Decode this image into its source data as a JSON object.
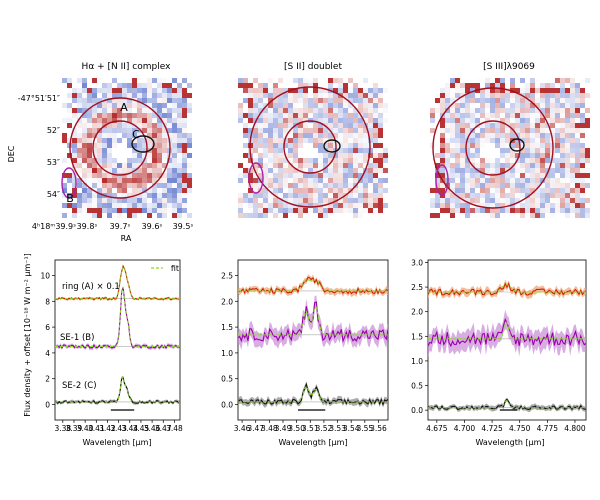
{
  "figure": {
    "maps": [
      {
        "title": "Hα + [N II] complex",
        "ylabel": "DEC",
        "xlabel": "RA",
        "yticks": [
          "-47°51′51″",
          "52″",
          "53″",
          "54″"
        ],
        "xticks": [
          "4ʰ18ᵐ39.9ˢ",
          "39.8ˢ",
          "39.7ˢ",
          "39.6ˢ",
          "39.5ˢ"
        ],
        "region_labels": [
          "A",
          "B",
          "C"
        ]
      },
      {
        "title": "[S II] doublet"
      },
      {
        "title": "[S III]λ9069"
      }
    ],
    "colors": {
      "ring": "#cc2200",
      "ring_fill": "#f0a070",
      "se1": "#9900aa",
      "se1_fill": "#c88ad6",
      "se2": "#111111",
      "se2_fill": "#888888",
      "fit": "#88dd22",
      "circle": "#a01020",
      "ellipseB": "#aa22aa",
      "ellipseC": "#111111"
    }
  },
  "chart_data": [
    {
      "type": "line",
      "ylabel": "Flux density + offset [10⁻¹⁸ W m⁻² μm⁻¹]",
      "xlabel": "Wavelength [μm]",
      "xlim": [
        3.373,
        3.485
      ],
      "ylim": [
        -1.2,
        11.2
      ],
      "xticks": [
        3.38,
        3.39,
        3.4,
        3.41,
        3.42,
        3.43,
        3.44,
        3.45,
        3.46,
        3.47,
        3.48
      ],
      "xtick_labels": [
        "3.38",
        "3.39",
        "3.40",
        "3.41",
        "3.42",
        "3.43",
        "3.44",
        "3.45",
        "3.46",
        "3.47",
        "3.48"
      ],
      "yticks": [
        0,
        2,
        4,
        6,
        8,
        10
      ],
      "legend": "fit",
      "series_labels": [
        "ring (A) × 0.1",
        "SE-1 (B)",
        "SE-2 (C)"
      ],
      "series": [
        {
          "label_index": 0,
          "baseline": 8.2,
          "lines": [
            [
              3.4335,
              2.2,
              0.0022
            ],
            [
              3.4376,
              1.2,
              0.0022
            ]
          ],
          "noise": 0.08
        },
        {
          "label_index": 1,
          "baseline": 4.5,
          "lines": [
            [
              3.4335,
              4.5,
              0.0018
            ],
            [
              3.4376,
              2.0,
              0.0018
            ]
          ],
          "noise": 0.12
        },
        {
          "label_index": 2,
          "baseline": 0.2,
          "lines": [
            [
              3.4335,
              1.9,
              0.0018
            ],
            [
              3.4376,
              0.8,
              0.0018
            ]
          ],
          "noise": 0.1
        }
      ],
      "bar_range": [
        3.423,
        3.444
      ]
    },
    {
      "type": "line",
      "xlabel": "Wavelength [μm]",
      "xlim": [
        3.457,
        3.567
      ],
      "ylim": [
        -0.3,
        2.8
      ],
      "xticks": [
        3.46,
        3.47,
        3.48,
        3.49,
        3.5,
        3.51,
        3.52,
        3.53,
        3.54,
        3.55,
        3.56
      ],
      "xtick_labels": [
        "3.46",
        "3.47",
        "3.48",
        "3.49",
        "3.50",
        "3.51",
        "3.52",
        "3.53",
        "3.54",
        "3.55",
        "3.56"
      ],
      "yticks": [
        0.0,
        0.5,
        1.0,
        1.5,
        2.0,
        2.5
      ],
      "series": [
        {
          "baseline": 2.2,
          "lines": [
            [
              3.507,
              0.2,
              0.003
            ],
            [
              3.514,
              0.2,
              0.003
            ]
          ],
          "noise": 0.05
        },
        {
          "baseline": 1.35,
          "lines": [
            [
              3.507,
              0.45,
              0.002
            ],
            [
              3.514,
              0.55,
              0.002
            ]
          ],
          "noise": 0.12
        },
        {
          "baseline": 0.05,
          "lines": [
            [
              3.507,
              0.3,
              0.002
            ],
            [
              3.514,
              0.25,
              0.002
            ]
          ],
          "noise": 0.05
        }
      ],
      "bar_range": [
        3.501,
        3.521
      ]
    },
    {
      "type": "line",
      "xlabel": "Wavelength [μm]",
      "xlim": [
        4.667,
        4.81
      ],
      "ylim": [
        -0.2,
        3.05
      ],
      "xticks": [
        4.675,
        4.7,
        4.725,
        4.75,
        4.775,
        4.8
      ],
      "xtick_labels": [
        "4.675",
        "4.700",
        "4.725",
        "4.750",
        "4.775",
        "4.800"
      ],
      "yticks": [
        0.0,
        0.5,
        1.0,
        1.5,
        2.0,
        2.5,
        3.0
      ],
      "series": [
        {
          "baseline": 2.4,
          "lines": [
            [
              4.738,
              0.15,
              0.004
            ]
          ],
          "noise": 0.06
        },
        {
          "baseline": 1.45,
          "lines": [
            [
              4.738,
              0.35,
              0.002
            ]
          ],
          "noise": 0.15
        },
        {
          "baseline": 0.05,
          "lines": [
            [
              4.738,
              0.15,
              0.002
            ]
          ],
          "noise": 0.04
        }
      ],
      "bar_range": [
        4.732,
        4.748
      ]
    }
  ]
}
